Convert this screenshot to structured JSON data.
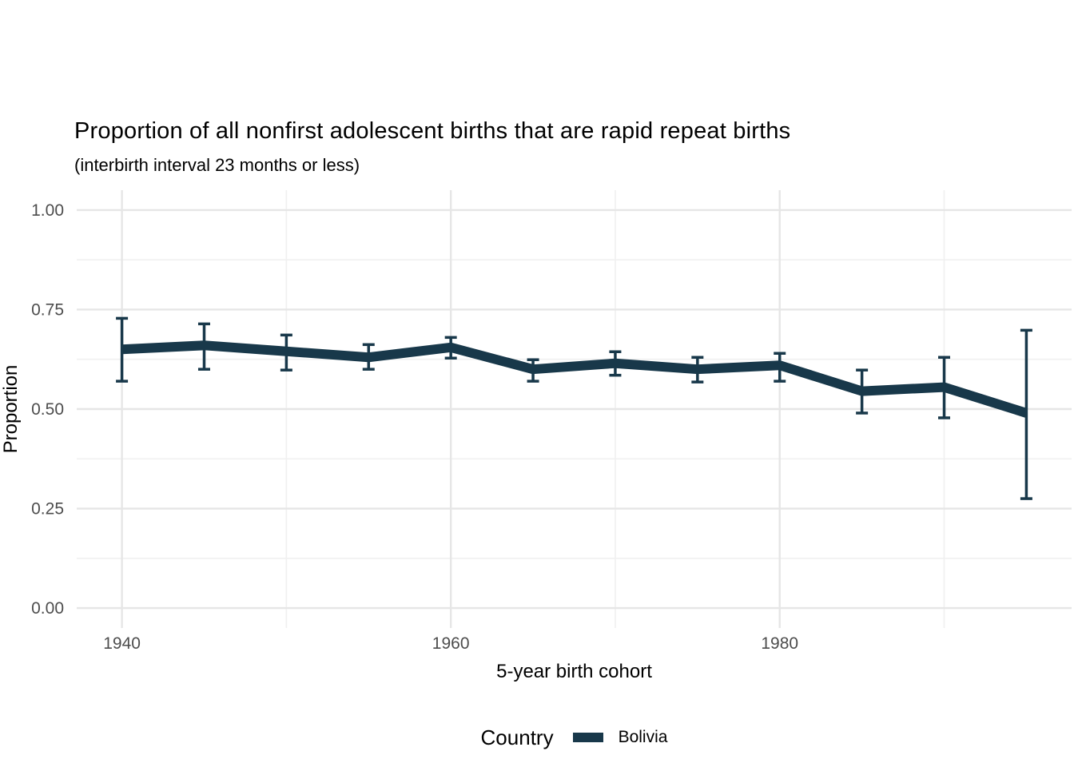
{
  "title": "Proportion of all nonfirst adolescent births that are rapid repeat births",
  "subtitle": "(interbirth interval 23 months or less)",
  "axes": {
    "x_label": "5-year birth cohort",
    "y_label": "Proportion"
  },
  "legend": {
    "title": "Country",
    "items": [
      {
        "label": "Bolivia",
        "color": "#18384a"
      }
    ]
  },
  "colors": {
    "line": "#18384a",
    "grid_major": "#e6e6e6",
    "grid_minor": "#f0f0f0",
    "tick_label": "#4d4d4d",
    "text": "#000000",
    "background": "#ffffff"
  },
  "chart_data": {
    "type": "line",
    "title": "Proportion of all nonfirst adolescent births that are rapid repeat births",
    "subtitle": "(interbirth interval 23 months or less)",
    "xlabel": "5-year birth cohort",
    "ylabel": "Proportion",
    "xlim": [
      1937.25,
      1997.75
    ],
    "ylim": [
      -0.05,
      1.05
    ],
    "x_ticks": [
      1940,
      1960,
      1980
    ],
    "x_tick_labels": [
      "1940",
      "1960",
      "1980"
    ],
    "x_minor_gridlines": [
      1950,
      1970,
      1990
    ],
    "y_ticks": [
      0.0,
      0.25,
      0.5,
      0.75,
      1.0
    ],
    "y_tick_labels": [
      "0.00",
      "0.25",
      "0.50",
      "0.75",
      "1.00"
    ],
    "y_minor_gridlines": [
      0.125,
      0.375,
      0.625,
      0.875
    ],
    "grid": true,
    "legend_position": "bottom",
    "legend_title": "Country",
    "series": [
      {
        "name": "Bolivia",
        "color": "#18384a",
        "x": [
          1940,
          1945,
          1950,
          1955,
          1960,
          1965,
          1970,
          1975,
          1980,
          1985,
          1990,
          1995
        ],
        "y": [
          0.65,
          0.66,
          0.645,
          0.63,
          0.655,
          0.6,
          0.615,
          0.6,
          0.61,
          0.545,
          0.555,
          0.49
        ],
        "ci_low": [
          0.57,
          0.6,
          0.598,
          0.6,
          0.628,
          0.57,
          0.585,
          0.568,
          0.57,
          0.49,
          0.478,
          0.275
        ],
        "ci_high": [
          0.728,
          0.714,
          0.686,
          0.662,
          0.68,
          0.624,
          0.644,
          0.63,
          0.64,
          0.598,
          0.63,
          0.698
        ]
      }
    ]
  }
}
